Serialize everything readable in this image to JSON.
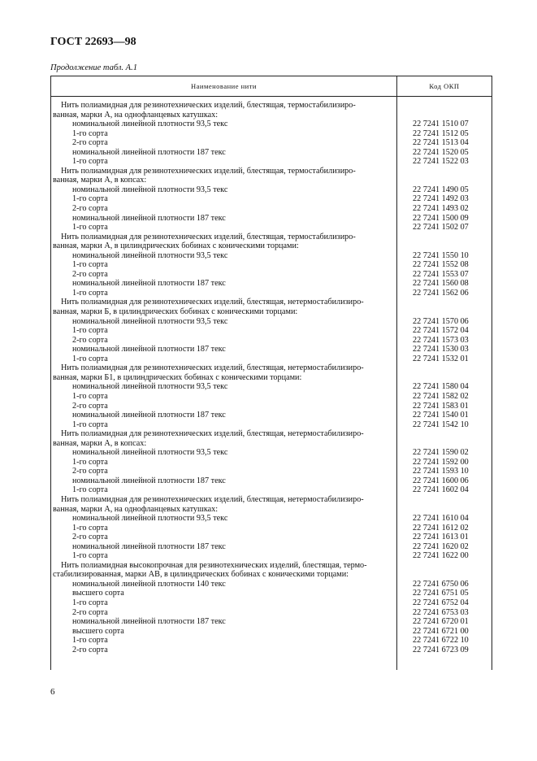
{
  "header": {
    "doc_title": "ГОСТ 22693—98",
    "caption": "Продолжение табл. А.1"
  },
  "table": {
    "columns": [
      "Наименование нити",
      "Код ОКП"
    ],
    "groups": [
      {
        "heading": [
          "Нить полиамидная для резинотехнических изделий, блестящая, термостабилизиро-",
          "ванная, марки А, на однофланцевых катушках:"
        ],
        "items": [
          {
            "name": "номинальной линейной плотности 93,5 текс",
            "code": "22 7241 1510 07"
          },
          {
            "name": "1-го сорта",
            "code": "22 7241 1512 05"
          },
          {
            "name": "2-го сорта",
            "code": "22 7241 1513 04"
          },
          {
            "name": "номинальной линейной плотности 187 текс",
            "code": "22 7241 1520 05"
          },
          {
            "name": "1-го сорта",
            "code": "22 7241 1522 03"
          }
        ]
      },
      {
        "heading": [
          "Нить полиамидная для резинотехнических изделий, блестящая, термостабилизиро-",
          "ванная, марки А, в копсах:"
        ],
        "items": [
          {
            "name": "номинальной линейной плотности 93,5 текс",
            "code": "22 7241 1490 05"
          },
          {
            "name": "1-го сорта",
            "code": "22 7241 1492 03"
          },
          {
            "name": "2-го сорта",
            "code": "22 7241 1493 02"
          },
          {
            "name": "номинальной линейной плотности 187 текс",
            "code": "22 7241 1500 09"
          },
          {
            "name": "1-го сорта",
            "code": "22 7241 1502 07"
          }
        ]
      },
      {
        "heading": [
          "Нить полиамидная для резинотехнических изделий, блестящая, термостабилизиро-",
          "ванная, марки А, в цилиндрических бобинах с коническими торцами:"
        ],
        "items": [
          {
            "name": "номинальной линейной плотности 93,5 текс",
            "code": "22 7241 1550 10"
          },
          {
            "name": "1-го сорта",
            "code": "22 7241 1552 08"
          },
          {
            "name": "2-го сорта",
            "code": "22 7241 1553 07"
          },
          {
            "name": "номинальной линейной плотности 187 текс",
            "code": "22 7241 1560 08"
          },
          {
            "name": "1-го сорта",
            "code": "22 7241 1562 06"
          }
        ]
      },
      {
        "heading": [
          "Нить полиамидная для резинотехнических изделий, блестящая, нетермостабилизиро-",
          "ванная, марки Б, в цилиндрических бобинах с коническими торцами:"
        ],
        "items": [
          {
            "name": "номинальной линейной плотности 93,5 текс",
            "code": "22 7241 1570 06"
          },
          {
            "name": "1-го сорта",
            "code": "22 7241 1572 04"
          },
          {
            "name": "2-го сорта",
            "code": "22 7241 1573 03"
          },
          {
            "name": "номинальной линейной плотности 187 текс",
            "code": "22 7241 1530 03"
          },
          {
            "name": "1-го сорта",
            "code": "22 7241 1532 01"
          }
        ]
      },
      {
        "heading": [
          "Нить полиамидная для резинотехнических изделий, блестящая, нетермостабилизиро-",
          "ванная, марки Б1, в цилиндрических бобинах с коническими торцами:"
        ],
        "items": [
          {
            "name": "номинальной линейной плотности 93,5 текс",
            "code": "22 7241 1580 04"
          },
          {
            "name": "1-го сорта",
            "code": "22 7241 1582 02"
          },
          {
            "name": "2-го сорта",
            "code": "22 7241 1583 01"
          },
          {
            "name": "номинальной линейной плотности 187 текс",
            "code": "22 7241 1540 01"
          },
          {
            "name": "1-го сорта",
            "code": "22 7241 1542 10"
          }
        ]
      },
      {
        "heading": [
          "Нить полиамидная для резинотехнических изделий, блестящая, нетермостабилизиро-",
          "ванная, марки А, в копсах:"
        ],
        "items": [
          {
            "name": "номинальной линейной плотности 93,5 текс",
            "code": "22 7241 1590 02"
          },
          {
            "name": "1-го сорта",
            "code": "22 7241 1592 00"
          },
          {
            "name": "2-го сорта",
            "code": "22 7241 1593 10"
          },
          {
            "name": "номинальной линейной плотности 187 текс",
            "code": "22 7241 1600 06"
          },
          {
            "name": "1-го сорта",
            "code": "22 7241 1602 04"
          }
        ]
      },
      {
        "heading": [
          "Нить полиамидная для резинотехнических изделий, блестящая, нетермостабилизиро-",
          "ванная, марки А, на однофланцевых катушках:"
        ],
        "items": [
          {
            "name": "номинальной линейной плотности 93,5 текс",
            "code": "22 7241 1610 04"
          },
          {
            "name": "1-го сорта",
            "code": "22 7241 1612 02"
          },
          {
            "name": "2-го сорта",
            "code": "22 7241 1613 01"
          },
          {
            "name": "номинальной линейной плотности 187 текс",
            "code": "22 7241 1620 02"
          },
          {
            "name": "1-го сорта",
            "code": "22 7241 1622 00"
          }
        ]
      },
      {
        "heading": [
          "Нить полиамидная высокопрочная для резинотехнических изделий, блестящая, термо-",
          "стабилизированная, марки АВ, в цилиндрических бобинах с коническими торцами:"
        ],
        "items": [
          {
            "name": "номинальной линейной плотности 140 текс",
            "code": "22 7241 6750 06"
          },
          {
            "name": "высшего сорта",
            "code": "22 7241 6751 05"
          },
          {
            "name": "1-го сорта",
            "code": "22 7241 6752 04"
          },
          {
            "name": "2-го сорта",
            "code": "22 7241 6753 03"
          },
          {
            "name": "номинальной линейной плотности 187 текс",
            "code": "22 7241 6720 01"
          },
          {
            "name": "высшего сорта",
            "code": "22 7241 6721 00"
          },
          {
            "name": "1-го сорта",
            "code": "22 7241 6722 10"
          },
          {
            "name": "2-го сорта",
            "code": "22 7241 6723 09"
          }
        ]
      }
    ]
  },
  "footer": {
    "page_number": "6"
  }
}
